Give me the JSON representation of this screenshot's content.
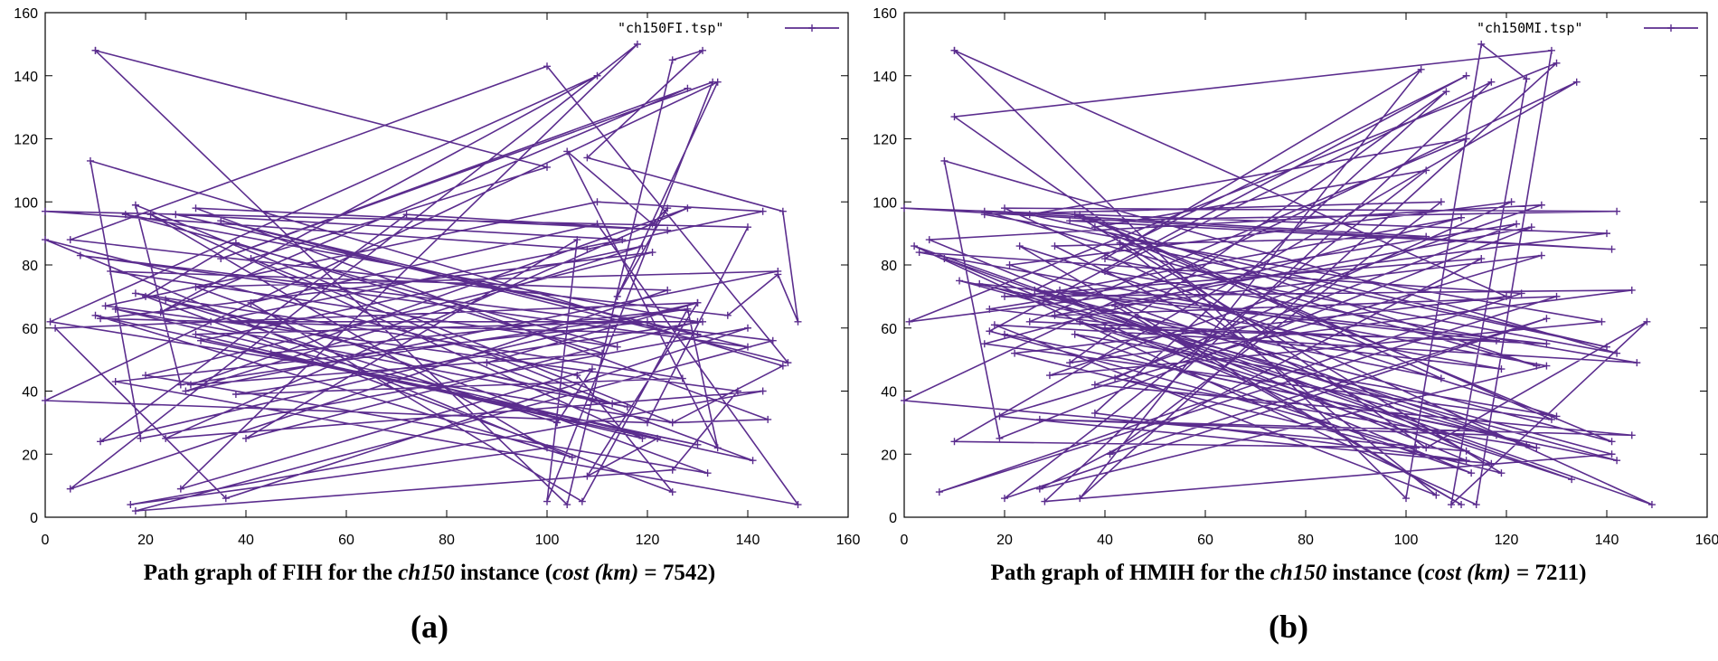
{
  "chart_data": [
    {
      "type": "line",
      "panel_label": "(a)",
      "legend": "\"ch150FI.tsp\"",
      "caption": {
        "prefix": "Path graph of FIH for the",
        "instance": "ch150",
        "middle": "instance (",
        "cost_label": "cost (km)",
        "equals": " = 7542)"
      },
      "xlim": [
        0,
        160
      ],
      "ylim": [
        0,
        160
      ],
      "xticks": [
        "0",
        "20",
        "40",
        "60",
        "80",
        "100",
        "120",
        "140",
        "160"
      ],
      "yticks": [
        "0",
        "20",
        "40",
        "60",
        "80",
        "100",
        "120",
        "140",
        "160"
      ],
      "color": "#5b2d8e",
      "tour": [
        [
          10,
          148
        ],
        [
          104,
          4
        ],
        [
          125,
          145
        ],
        [
          131,
          148
        ],
        [
          108,
          114
        ],
        [
          147,
          97
        ],
        [
          150,
          62
        ],
        [
          146,
          77
        ],
        [
          136,
          64
        ],
        [
          5,
          88
        ],
        [
          100,
          143
        ],
        [
          148,
          49
        ],
        [
          35,
          94
        ],
        [
          140,
          54
        ],
        [
          7,
          83
        ],
        [
          145,
          56
        ],
        [
          18,
          2
        ],
        [
          125,
          15
        ],
        [
          138,
          40
        ],
        [
          12,
          67
        ],
        [
          110,
          100
        ],
        [
          143,
          97
        ],
        [
          108,
          85
        ],
        [
          0,
          97
        ],
        [
          140,
          92
        ],
        [
          120,
          30
        ],
        [
          0,
          37
        ],
        [
          134,
          138
        ],
        [
          114,
          70
        ],
        [
          124,
          98
        ],
        [
          121,
          93
        ],
        [
          104,
          116
        ],
        [
          134,
          22
        ],
        [
          128,
          66
        ],
        [
          27,
          42
        ],
        [
          18,
          99
        ],
        [
          125,
          30
        ],
        [
          147,
          48
        ],
        [
          9,
          113
        ],
        [
          19,
          25
        ],
        [
          140,
          60
        ],
        [
          36,
          6
        ],
        [
          2,
          60
        ],
        [
          130,
          68
        ],
        [
          11,
          24
        ],
        [
          72,
          96
        ],
        [
          124,
          91
        ],
        [
          30,
          98
        ],
        [
          144,
          31
        ],
        [
          125,
          30
        ],
        [
          1,
          62
        ],
        [
          110,
          140
        ],
        [
          23,
          65
        ],
        [
          128,
          136
        ],
        [
          35,
          82
        ],
        [
          133,
          138
        ],
        [
          100,
          5
        ],
        [
          106,
          88
        ],
        [
          40,
          25
        ],
        [
          130,
          62
        ],
        [
          16,
          96
        ],
        [
          114,
          54
        ],
        [
          13,
          78
        ],
        [
          124,
          72
        ],
        [
          5,
          9
        ],
        [
          118,
          150
        ],
        [
          27,
          9
        ],
        [
          109,
          47
        ],
        [
          102,
          30
        ],
        [
          24,
          69
        ],
        [
          116,
          35
        ],
        [
          14,
          66
        ],
        [
          122,
          25
        ],
        [
          108,
          13
        ],
        [
          130,
          68
        ],
        [
          88,
          49
        ],
        [
          141,
          18
        ],
        [
          10,
          64
        ],
        [
          105,
          19
        ],
        [
          0,
          88
        ],
        [
          106,
          45
        ],
        [
          125,
          8
        ],
        [
          20,
          70
        ],
        [
          38,
          87
        ],
        [
          111,
          52
        ],
        [
          29,
          42
        ],
        [
          128,
          98
        ],
        [
          24,
          25
        ],
        [
          143,
          40
        ],
        [
          17,
          4
        ],
        [
          100,
          22
        ],
        [
          21,
          96
        ],
        [
          119,
          25
        ],
        [
          30,
          58
        ],
        [
          120,
          62
        ],
        [
          14,
          43
        ],
        [
          150,
          4
        ],
        [
          110,
          93
        ],
        [
          41,
          68
        ],
        [
          107,
          5
        ],
        [
          128,
          66
        ],
        [
          45,
          52
        ],
        [
          130,
          23
        ],
        [
          31,
          56
        ],
        [
          119,
          86
        ],
        [
          28,
          40
        ],
        [
          146,
          78
        ],
        [
          30,
          73
        ],
        [
          132,
          14
        ],
        [
          20,
          45
        ],
        [
          121,
          84
        ],
        [
          11,
          63
        ],
        [
          130,
          58
        ],
        [
          26,
          96
        ],
        [
          115,
          88
        ],
        [
          33,
          62
        ],
        [
          131,
          62
        ],
        [
          38,
          39
        ],
        [
          127,
          44
        ],
        [
          18,
          71
        ],
        [
          113,
          36
        ],
        [
          41,
          82
        ],
        [
          100,
          111
        ],
        [
          10,
          148
        ]
      ]
    },
    {
      "type": "line",
      "panel_label": "(b)",
      "legend": "\"ch150MI.tsp\"",
      "caption": {
        "prefix": "Path graph of HMIH for the",
        "instance": "ch150",
        "middle": "instance (",
        "cost_label": "cost (km)",
        "equals": " = 7211)"
      },
      "xlim": [
        0,
        160
      ],
      "ylim": [
        0,
        160
      ],
      "xticks": [
        "0",
        "20",
        "40",
        "60",
        "80",
        "100",
        "120",
        "140",
        "160"
      ],
      "yticks": [
        "0",
        "20",
        "40",
        "60",
        "80",
        "100",
        "120",
        "140",
        "160"
      ],
      "color": "#5b2d8e",
      "tour": [
        [
          10,
          148
        ],
        [
          100,
          6
        ],
        [
          115,
          150
        ],
        [
          124,
          139
        ],
        [
          109,
          4
        ],
        [
          148,
          62
        ],
        [
          104,
          22
        ],
        [
          10,
          127
        ],
        [
          129,
          148
        ],
        [
          114,
          4
        ],
        [
          2,
          86
        ],
        [
          149,
          4
        ],
        [
          20,
          98
        ],
        [
          142,
          97
        ],
        [
          33,
          94
        ],
        [
          141,
          85
        ],
        [
          0,
          98
        ],
        [
          140,
          90
        ],
        [
          1,
          62
        ],
        [
          130,
          144
        ],
        [
          35,
          6
        ],
        [
          103,
          142
        ],
        [
          40,
          82
        ],
        [
          142,
          52
        ],
        [
          8,
          113
        ],
        [
          19,
          25
        ],
        [
          125,
          92
        ],
        [
          30,
          64
        ],
        [
          130,
          70
        ],
        [
          7,
          8
        ],
        [
          123,
          71
        ],
        [
          3,
          84
        ],
        [
          128,
          48
        ],
        [
          27,
          9
        ],
        [
          115,
          82
        ],
        [
          20,
          70
        ],
        [
          145,
          72
        ],
        [
          33,
          49
        ],
        [
          108,
          135
        ],
        [
          38,
          33
        ],
        [
          112,
          18
        ],
        [
          5,
          88
        ],
        [
          127,
          99
        ],
        [
          29,
          45
        ],
        [
          139,
          62
        ],
        [
          16,
          96
        ],
        [
          107,
          100
        ],
        [
          41,
          20
        ],
        [
          128,
          63
        ],
        [
          20,
          6
        ],
        [
          104,
          110
        ],
        [
          38,
          92
        ],
        [
          141,
          24
        ],
        [
          26,
          72
        ],
        [
          112,
          140
        ],
        [
          17,
          59
        ],
        [
          102,
          22
        ],
        [
          10,
          24
        ],
        [
          134,
          138
        ],
        [
          0,
          37
        ],
        [
          112,
          21
        ],
        [
          35,
          62
        ],
        [
          124,
          23
        ],
        [
          21,
          80
        ],
        [
          121,
          100
        ],
        [
          42,
          44
        ],
        [
          126,
          22
        ],
        [
          28,
          71
        ],
        [
          111,
          95
        ],
        [
          16,
          55
        ],
        [
          129,
          31
        ],
        [
          35,
          96
        ],
        [
          107,
          44
        ],
        [
          11,
          75
        ],
        [
          142,
          18
        ],
        [
          20,
          58
        ],
        [
          118,
          26
        ],
        [
          27,
          31
        ],
        [
          145,
          26
        ],
        [
          38,
          42
        ],
        [
          122,
          93
        ],
        [
          17,
          66
        ],
        [
          119,
          47
        ],
        [
          31,
          72
        ],
        [
          128,
          55
        ],
        [
          25,
          62
        ],
        [
          112,
          120
        ],
        [
          25,
          96
        ],
        [
          140,
          54
        ],
        [
          43,
          87
        ],
        [
          106,
          7
        ],
        [
          18,
          61
        ],
        [
          146,
          49
        ],
        [
          40,
          78
        ],
        [
          117,
          138
        ],
        [
          28,
          5
        ],
        [
          141,
          20
        ],
        [
          15,
          74
        ],
        [
          118,
          56
        ],
        [
          40,
          60
        ],
        [
          133,
          12
        ],
        [
          8,
          82
        ],
        [
          113,
          14
        ],
        [
          34,
          58
        ],
        [
          130,
          32
        ],
        [
          23,
          86
        ],
        [
          111,
          4
        ],
        [
          42,
          67
        ],
        [
          127,
          83
        ],
        [
          19,
          32
        ],
        [
          117,
          17
        ],
        [
          30,
          86
        ],
        [
          104,
          89
        ],
        [
          16,
          97
        ],
        [
          126,
          48
        ],
        [
          34,
          96
        ],
        [
          119,
          14
        ],
        [
          22,
          52
        ],
        [
          120,
          70
        ],
        [
          10,
          148
        ]
      ]
    }
  ]
}
